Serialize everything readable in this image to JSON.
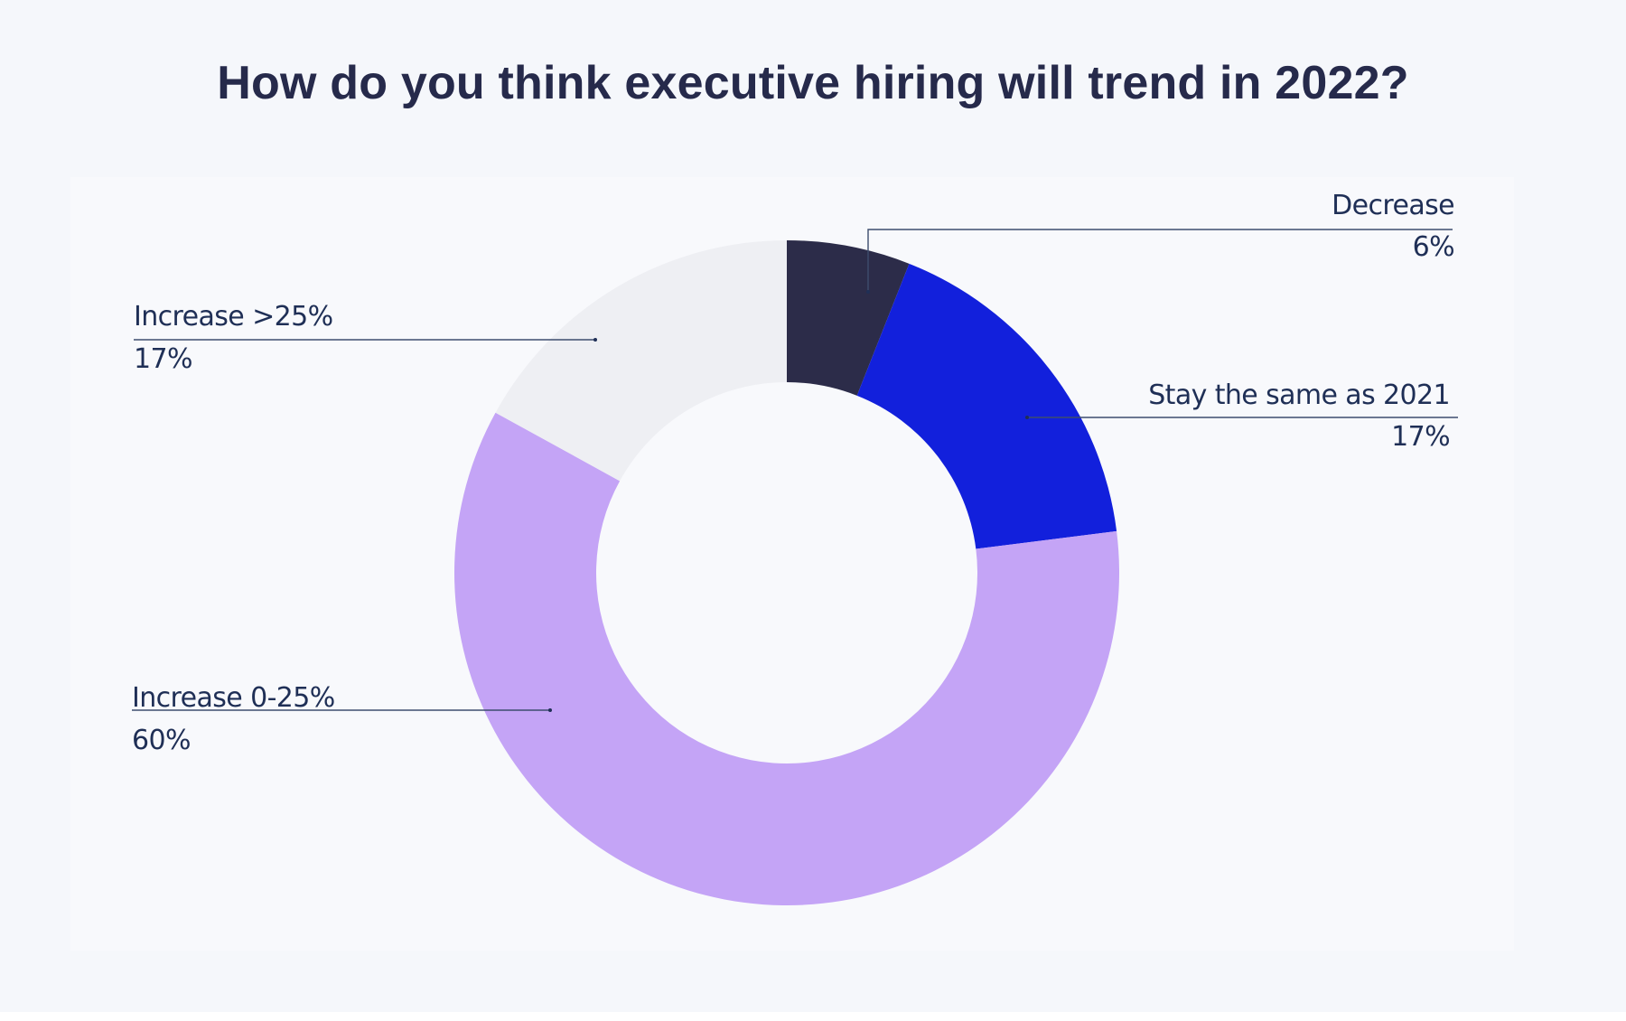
{
  "chart_data": {
    "type": "pie",
    "title": "How do you think executive hiring will trend in 2022?",
    "slices": [
      {
        "label": "Decrease",
        "value": 6,
        "value_label": "6%",
        "color": "#2c2c49"
      },
      {
        "label": "Stay the same as 2021",
        "value": 17,
        "value_label": "17%",
        "color": "#1220dc"
      },
      {
        "label": "Increase 0-25%",
        "value": 60,
        "value_label": "60%",
        "color": "#c4a4f6"
      },
      {
        "label": "Increase >25%",
        "value": 17,
        "value_label": "17%",
        "color": "#eeeff3"
      }
    ],
    "donut": true
  }
}
